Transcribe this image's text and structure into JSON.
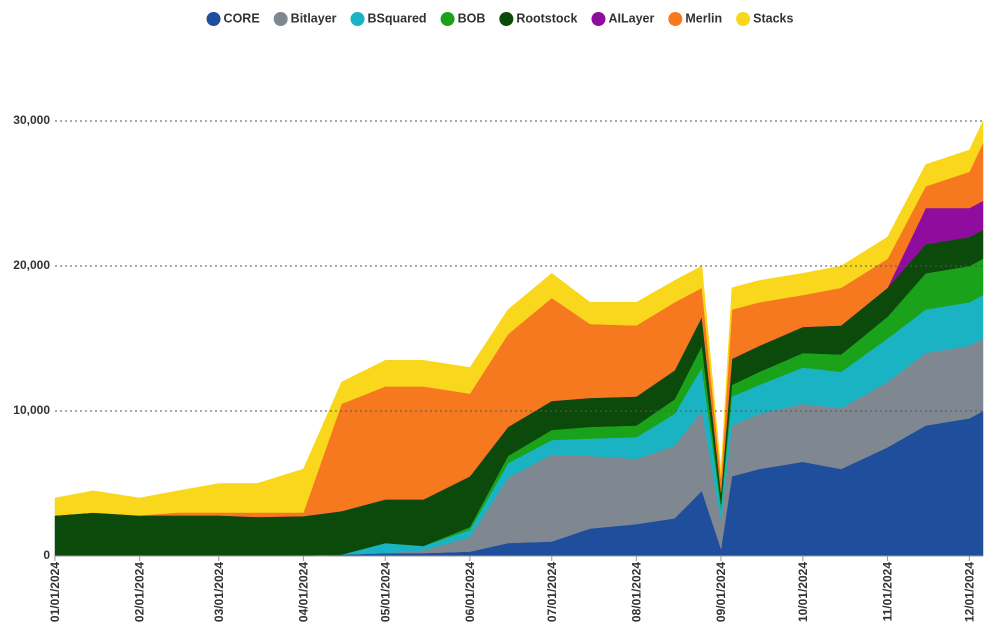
{
  "chart_data": {
    "type": "stacked-area",
    "x": [
      "01/01/2024",
      "01/15/2024",
      "02/01/2024",
      "02/15/2024",
      "03/01/2024",
      "03/15/2024",
      "04/01/2024",
      "04/15/2024",
      "05/01/2024",
      "05/15/2024",
      "06/01/2024",
      "06/15/2024",
      "07/01/2024",
      "07/15/2024",
      "08/01/2024",
      "08/15/2024",
      "08/25/2024",
      "09/01/2024",
      "09/05/2024",
      "09/15/2024",
      "10/01/2024",
      "10/15/2024",
      "11/01/2024",
      "11/15/2024",
      "12/01/2024",
      "12/06/2024"
    ],
    "xlim": [
      "01/01/2024",
      "12/06/2024"
    ],
    "xticks": [
      "01/01/2024",
      "02/01/2024",
      "03/01/2024",
      "04/01/2024",
      "05/01/2024",
      "06/01/2024",
      "07/01/2024",
      "08/01/2024",
      "09/01/2024",
      "10/01/2024",
      "11/01/2024",
      "12/01/2024"
    ],
    "ylim": [
      0,
      30000
    ],
    "yticks": [
      0,
      {
        "value": 10000,
        "label": "10,000"
      },
      {
        "value": 20000,
        "label": "20,000"
      },
      {
        "value": 30000,
        "label": "30,000"
      }
    ],
    "grid": true,
    "legend": "top",
    "series": [
      {
        "name": "CORE",
        "color": "#1f4e9c",
        "values": [
          0,
          0,
          0,
          0,
          0,
          0,
          50,
          100,
          200,
          200,
          300,
          900,
          1000,
          1900,
          2200,
          2600,
          4500,
          500,
          5500,
          6000,
          6500,
          6000,
          7500,
          9000,
          9500,
          10000
        ]
      },
      {
        "name": "Bitlayer",
        "color": "#7f8891",
        "values": [
          0,
          0,
          0,
          0,
          0,
          0,
          0,
          0,
          0,
          200,
          1000,
          4500,
          6000,
          5000,
          4500,
          5000,
          5500,
          2000,
          3500,
          3800,
          4000,
          4200,
          4500,
          5000,
          5000,
          5000
        ]
      },
      {
        "name": "BSquared",
        "color": "#1ab3c4",
        "values": [
          0,
          0,
          0,
          0,
          0,
          0,
          0,
          0,
          700,
          300,
          500,
          1000,
          1000,
          1200,
          1500,
          2200,
          3000,
          800,
          2000,
          2000,
          2500,
          2500,
          3000,
          3000,
          3000,
          3000
        ]
      },
      {
        "name": "BOB",
        "color": "#1aa31a",
        "values": [
          0,
          0,
          0,
          0,
          0,
          0,
          0,
          0,
          0,
          0,
          200,
          500,
          700,
          800,
          800,
          1000,
          1500,
          300,
          800,
          900,
          1000,
          1200,
          1500,
          2500,
          2500,
          2500
        ]
      },
      {
        "name": "Rootstock",
        "color": "#0b4a0b",
        "values": [
          2800,
          3000,
          2800,
          2800,
          2800,
          2700,
          2700,
          3000,
          3000,
          3200,
          3500,
          2000,
          2000,
          2000,
          2000,
          2000,
          2000,
          800,
          1800,
          1800,
          1800,
          2000,
          2000,
          2000,
          2000,
          2000
        ]
      },
      {
        "name": "AILayer",
        "color": "#8e0d9e",
        "values": [
          0,
          0,
          0,
          0,
          0,
          0,
          0,
          0,
          0,
          0,
          0,
          0,
          0,
          0,
          0,
          0,
          0,
          0,
          0,
          0,
          0,
          0,
          0,
          2500,
          2000,
          2000
        ]
      },
      {
        "name": "Merlin",
        "color": "#f7791f",
        "values": [
          0,
          0,
          0,
          200,
          200,
          300,
          250,
          7400,
          7800,
          7800,
          5700,
          6400,
          7100,
          5100,
          4900,
          4700,
          2000,
          1000,
          3400,
          3000,
          2200,
          2600,
          2000,
          1500,
          2500,
          4000
        ]
      },
      {
        "name": "Stacks",
        "color": "#f9d71c",
        "values": [
          1200,
          1500,
          1200,
          1500,
          2000,
          2000,
          3000,
          1500,
          1800,
          1800,
          1800,
          1700,
          1700,
          1500,
          1600,
          1500,
          1500,
          500,
          1500,
          1500,
          1500,
          1500,
          1500,
          1500,
          1500,
          1500
        ]
      }
    ]
  }
}
